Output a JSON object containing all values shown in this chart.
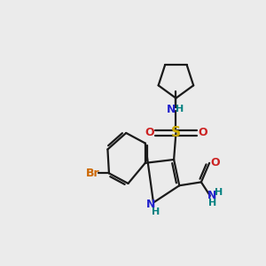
{
  "background_color": "#ebebeb",
  "bond_color": "#1a1a1a",
  "bond_width": 1.6,
  "figsize": [
    3.0,
    3.0
  ],
  "dpi": 100,
  "atom_colors": {
    "N": "#2222cc",
    "O": "#cc2222",
    "S": "#ccaa00",
    "Br": "#cc6600",
    "H": "#008080",
    "C": "#1a1a1a"
  }
}
